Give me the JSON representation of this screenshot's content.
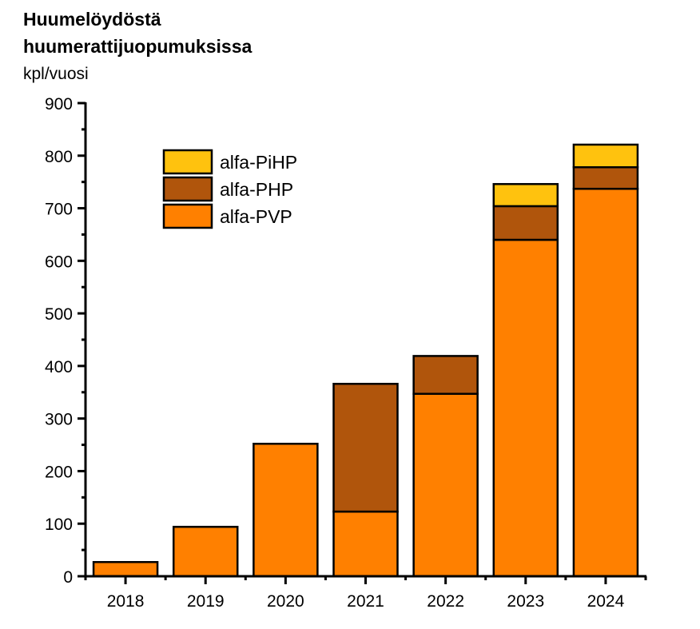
{
  "header": {
    "title_line1": "Huumelöydöstä",
    "title_line2": "huumerattijuopumuksissa",
    "unit": "kpl/vuosi"
  },
  "colors": {
    "alfa-PVP": "#FF8000",
    "alfa-PHP": "#B0550C",
    "alfa-PiHP": "#FFC20E",
    "axis": "#000000"
  },
  "chart_data": {
    "type": "bar",
    "stacked": true,
    "title": "Huumelöydöstä huumerattijuopumuksissa",
    "subtitle": "kpl/vuosi",
    "xlabel": "",
    "ylabel": "kpl/vuosi",
    "ylim": [
      0,
      900
    ],
    "yticks": [
      0,
      100,
      200,
      300,
      400,
      500,
      600,
      700,
      800,
      900
    ],
    "grid": false,
    "legend_position": "upper left (inside)",
    "categories": [
      "2018",
      "2019",
      "2020",
      "2021",
      "2022",
      "2023",
      "2024"
    ],
    "series": [
      {
        "name": "alfa-PVP",
        "color": "#FF8000",
        "values": [
          27,
          94,
          252,
          123,
          347,
          640,
          737
        ]
      },
      {
        "name": "alfa-PHP",
        "color": "#B0550C",
        "values": [
          0,
          0,
          0,
          243,
          72,
          64,
          41
        ]
      },
      {
        "name": "alfa-PiHP",
        "color": "#FFC20E",
        "values": [
          0,
          0,
          0,
          0,
          0,
          42,
          43
        ]
      }
    ],
    "totals": [
      27,
      94,
      252,
      366,
      419,
      746,
      821
    ]
  },
  "legend": {
    "items": [
      {
        "label": "alfa-PiHP",
        "color": "#FFC20E"
      },
      {
        "label": "alfa-PHP",
        "color": "#B0550C"
      },
      {
        "label": "alfa-PVP",
        "color": "#FF8000"
      }
    ]
  }
}
